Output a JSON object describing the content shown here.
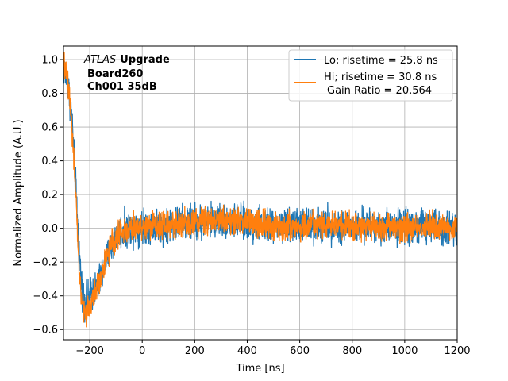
{
  "chart_data": {
    "type": "line",
    "xlabel": "Time [ns]",
    "ylabel": "Normalized Amplitude (A.U.)",
    "xlim": [
      -300,
      1200
    ],
    "ylim": [
      -0.66,
      1.08
    ],
    "x_ticks": [
      -200,
      0,
      200,
      400,
      600,
      800,
      1000,
      1200
    ],
    "x_tick_labels": [
      "−200",
      "0",
      "200",
      "400",
      "600",
      "800",
      "1000",
      "1200"
    ],
    "y_ticks": [
      -0.6,
      -0.4,
      -0.2,
      0.0,
      0.2,
      0.4,
      0.6,
      0.8,
      1.0
    ],
    "y_tick_labels": [
      "−0.6",
      "−0.4",
      "−0.2",
      "0.0",
      "0.2",
      "0.4",
      "0.6",
      "0.8",
      "1.0"
    ],
    "grid": true,
    "legend_position": "top-right",
    "annotation": {
      "italic": "ATLAS",
      "bold": "Upgrade",
      "line2": "Board260",
      "line3": "Ch001 35dB"
    },
    "series": [
      {
        "name": "Lo; risetime = 25.8 ns",
        "color": "#1f77b4",
        "noise": 0.05,
        "x": [
          -300,
          -290,
          -280,
          -270,
          -260,
          -250,
          -240,
          -230,
          -220,
          -210,
          -200,
          -190,
          -180,
          -170,
          -160,
          -150,
          -140,
          -130,
          -120,
          -110,
          -100,
          -90,
          -80,
          -60,
          -40,
          -20,
          0,
          50,
          100,
          150,
          200,
          250,
          300,
          350,
          400,
          450,
          500,
          600,
          700,
          800,
          900,
          1000,
          1100,
          1200
        ],
        "y": [
          0.95,
          0.9,
          0.82,
          0.68,
          0.45,
          0.15,
          -0.15,
          -0.35,
          -0.42,
          -0.43,
          -0.4,
          -0.38,
          -0.36,
          -0.34,
          -0.3,
          -0.25,
          -0.2,
          -0.16,
          -0.12,
          -0.08,
          -0.05,
          -0.03,
          -0.02,
          -0.01,
          0.0,
          0.01,
          0.01,
          0.02,
          0.02,
          0.03,
          0.04,
          0.04,
          0.05,
          0.04,
          0.03,
          0.02,
          0.01,
          0.02,
          0.02,
          0.01,
          0.01,
          0.02,
          0.01,
          0.01
        ]
      },
      {
        "name": "Hi; risetime = 30.8 ns",
        "name_line2": "Gain Ratio = 20.564",
        "color": "#ff7f0e",
        "noise": 0.04,
        "x": [
          -300,
          -290,
          -280,
          -270,
          -260,
          -250,
          -240,
          -230,
          -220,
          -210,
          -200,
          -190,
          -180,
          -170,
          -160,
          -150,
          -140,
          -130,
          -120,
          -110,
          -100,
          -90,
          -80,
          -60,
          -40,
          -20,
          0,
          50,
          100,
          150,
          200,
          250,
          300,
          350,
          400,
          450,
          500,
          600,
          700,
          800,
          900,
          1000,
          1100,
          1200
        ],
        "y": [
          0.97,
          0.92,
          0.83,
          0.66,
          0.4,
          0.08,
          -0.25,
          -0.45,
          -0.5,
          -0.49,
          -0.46,
          -0.42,
          -0.38,
          -0.34,
          -0.3,
          -0.25,
          -0.2,
          -0.15,
          -0.11,
          -0.08,
          -0.05,
          -0.03,
          -0.02,
          -0.01,
          0.0,
          0.01,
          0.01,
          0.02,
          0.02,
          0.03,
          0.04,
          0.05,
          0.06,
          0.05,
          0.04,
          0.02,
          0.01,
          0.01,
          0.02,
          0.01,
          0.01,
          0.01,
          0.01,
          0.01
        ]
      }
    ]
  }
}
